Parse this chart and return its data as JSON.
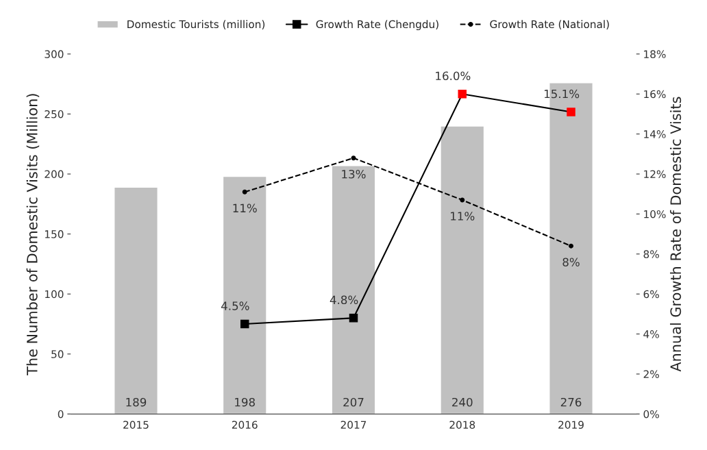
{
  "chart_data": {
    "type": "bar",
    "categories": [
      "2015",
      "2016",
      "2017",
      "2018",
      "2019"
    ],
    "ylabel": "The Number of Domestic Visits (Million)",
    "y2label": "Annual Growth Rate of Domestic Visits",
    "ylim": [
      0,
      300
    ],
    "yticks": [
      0,
      50,
      100,
      150,
      200,
      250,
      300
    ],
    "y2lim": [
      0,
      18
    ],
    "y2ticks": [
      {
        "value": 0,
        "label": "0%"
      },
      {
        "value": 2,
        "label": "2%"
      },
      {
        "value": 4,
        "label": "4%"
      },
      {
        "value": 6,
        "label": "6%"
      },
      {
        "value": 8,
        "label": "8%"
      },
      {
        "value": 10,
        "label": "10%"
      },
      {
        "value": 12,
        "label": "12%"
      },
      {
        "value": 14,
        "label": "14%"
      },
      {
        "value": 16,
        "label": "16%"
      },
      {
        "value": 18,
        "label": "18%"
      }
    ],
    "legend": "top",
    "grid": false,
    "series": [
      {
        "name": "Domestic Tourists (million)",
        "color": "#c0c0c0",
        "values": [
          189,
          198,
          207,
          240,
          276
        ],
        "data_labels": true
      },
      {
        "name": "Growth Rate (Chengdu)",
        "type": "line",
        "axis": "y2",
        "color": "#000000",
        "colors": [
          null,
          "#000000",
          "#000000",
          "#ff0000",
          "#ff0000"
        ],
        "marker": "square",
        "line_style": "solid",
        "values": [
          null,
          4.5,
          4.8,
          16.0,
          15.1
        ],
        "value_labels": [
          null,
          "4.5%",
          "4.8%",
          "16.0%",
          "15.1%"
        ]
      },
      {
        "name": "Growth Rate (National)",
        "type": "line",
        "axis": "y2",
        "color": "#000000",
        "marker": "circle",
        "line_style": "dashed",
        "values": [
          null,
          11.1,
          12.8,
          10.7,
          8.4
        ],
        "value_labels": [
          null,
          "11%",
          "13%",
          "11%",
          "8%"
        ]
      }
    ]
  }
}
